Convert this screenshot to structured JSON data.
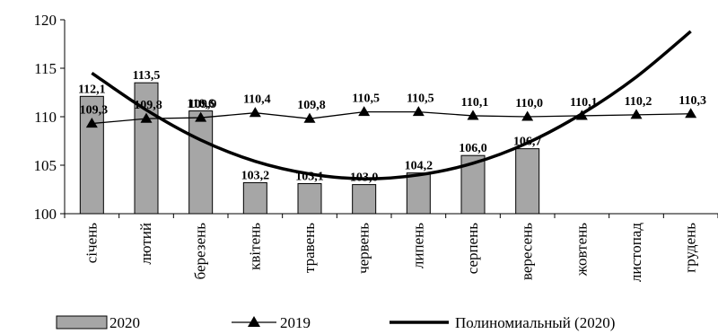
{
  "chart_data": {
    "type": "bar",
    "categories": [
      "січень",
      "лютий",
      "березень",
      "квітень",
      "травень",
      "червень",
      "липень",
      "серпень",
      "вересень",
      "жовтень",
      "листопад",
      "грудень"
    ],
    "series": [
      {
        "name": "2020",
        "type": "bar",
        "values": [
          112.1,
          113.5,
          110.6,
          103.2,
          103.1,
          103.0,
          104.2,
          106.0,
          106.7,
          null,
          null,
          null
        ],
        "labels": [
          "112,1",
          "113,5",
          "110,6",
          "103,2",
          "103,1",
          "103,0",
          "104,2",
          "106,0",
          "106,7",
          "",
          "",
          ""
        ],
        "color": "#a6a6a6"
      },
      {
        "name": "2019",
        "type": "line",
        "marker": "triangle",
        "values": [
          109.3,
          109.8,
          109.9,
          110.4,
          109.8,
          110.5,
          110.5,
          110.1,
          110.0,
          110.1,
          110.2,
          110.3
        ],
        "labels": [
          "109,3",
          "109,8",
          "109,9",
          "110,4",
          "109,8",
          "110,5",
          "110,5",
          "110,1",
          "110,0",
          "110,1",
          "110,2",
          "110,3"
        ],
        "color": "#000000"
      },
      {
        "name": "Полиномиальный (2020)",
        "type": "trendline",
        "values": [
          114.5,
          110.7,
          107.6,
          105.4,
          104.1,
          103.6,
          104.0,
          105.2,
          107.3,
          110.3,
          114.1,
          118.8
        ],
        "color": "#000000"
      }
    ],
    "yticks": [
      "100",
      "105",
      "110",
      "115",
      "120"
    ],
    "ylim": [
      100,
      120
    ],
    "legend_position": "bottom",
    "grid": false
  }
}
